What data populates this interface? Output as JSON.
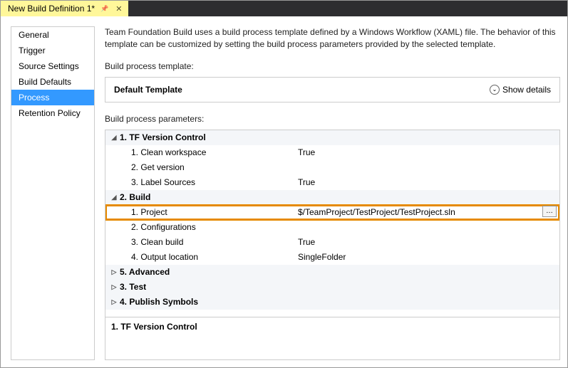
{
  "tab": {
    "title": "New Build Definition 1*"
  },
  "sidebar": {
    "items": [
      {
        "label": "General",
        "selected": false
      },
      {
        "label": "Trigger",
        "selected": false
      },
      {
        "label": "Source Settings",
        "selected": false
      },
      {
        "label": "Build Defaults",
        "selected": false
      },
      {
        "label": "Process",
        "selected": true
      },
      {
        "label": "Retention Policy",
        "selected": false
      }
    ]
  },
  "main": {
    "description": "Team Foundation Build uses a build process template defined by a Windows Workflow (XAML) file. The behavior of this template can be customized by setting the build process parameters provided by the selected template.",
    "template_section_label": "Build process template:",
    "template_name": "Default Template",
    "show_details_label": "Show details",
    "params_section_label": "Build process parameters:",
    "footer_label": "1. TF Version Control"
  },
  "groups": [
    {
      "label": "1. TF Version Control",
      "expanded": true,
      "rows": [
        {
          "label": "1. Clean workspace",
          "value": "True"
        },
        {
          "label": "2. Get version",
          "value": ""
        },
        {
          "label": "3. Label Sources",
          "value": "True"
        }
      ]
    },
    {
      "label": "2. Build",
      "expanded": true,
      "rows": [
        {
          "label": "1. Project",
          "value": "$/TeamProject/TestProject/TestProject.sln",
          "highlight": true,
          "browse": true
        },
        {
          "label": "2. Configurations",
          "value": ""
        },
        {
          "label": "3. Clean build",
          "value": "True"
        },
        {
          "label": "4. Output location",
          "value": "SingleFolder"
        }
      ]
    },
    {
      "label": "5. Advanced",
      "expanded": false,
      "rows": []
    },
    {
      "label": "3. Test",
      "expanded": false,
      "rows": []
    },
    {
      "label": "4. Publish Symbols",
      "expanded": false,
      "rows": []
    }
  ],
  "colors": {
    "tab_bg": "#fff79a",
    "selection": "#3399ff",
    "highlight_border": "#e68a00",
    "group_bg": "#f4f6f9"
  }
}
